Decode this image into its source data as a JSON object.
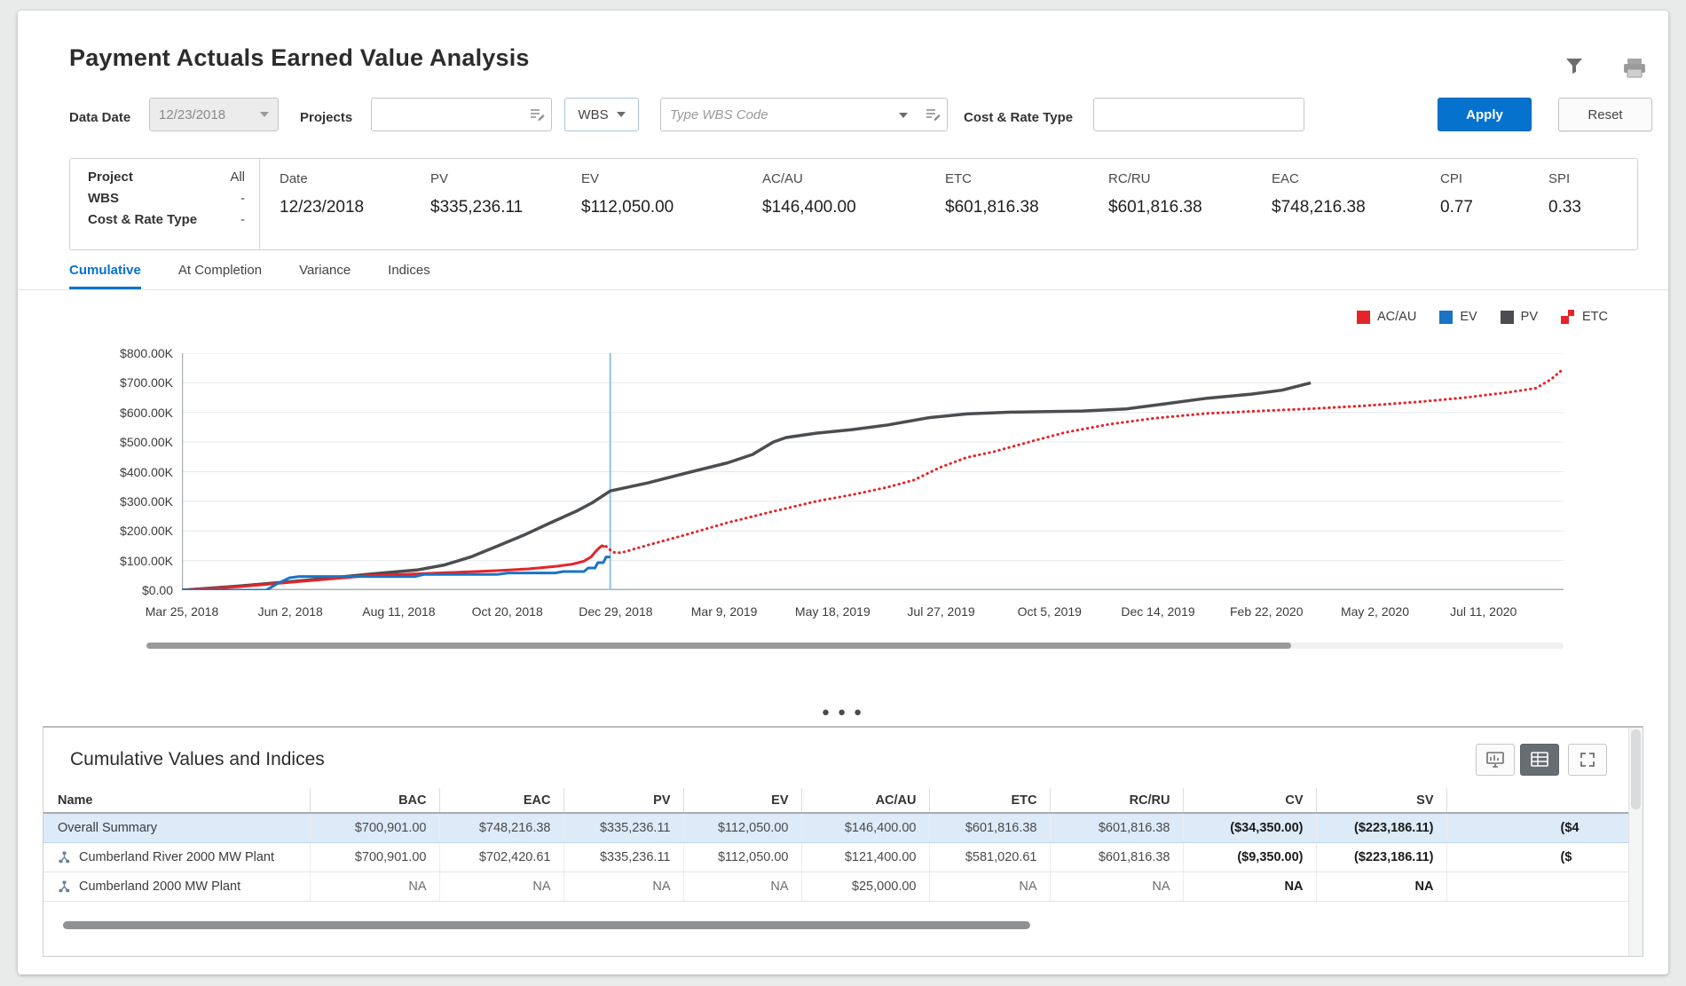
{
  "app": {
    "title": "Payment Actuals Earned Value Analysis"
  },
  "toolbar": {
    "apply_label": "Apply",
    "reset_label": "Reset"
  },
  "filters": {
    "data_date": {
      "label": "Data Date",
      "value": "12/23/2018"
    },
    "projects": {
      "label": "Projects",
      "value": ""
    },
    "wbs_selector": {
      "label": "WBS"
    },
    "wbs_code": {
      "placeholder": "Type WBS Code",
      "value": ""
    },
    "cost_rate_type": {
      "label": "Cost & Rate Type",
      "value": ""
    }
  },
  "summary": {
    "left": [
      {
        "label": "Project",
        "value": "All"
      },
      {
        "label": "WBS",
        "value": "-"
      },
      {
        "label": "Cost & Rate Type",
        "value": "-"
      }
    ],
    "metrics": [
      {
        "label": "Date",
        "value": "12/23/2018"
      },
      {
        "label": "PV",
        "value": "$335,236.11"
      },
      {
        "label": "EV",
        "value": "$112,050.00"
      },
      {
        "label": "AC/AU",
        "value": "$146,400.00"
      },
      {
        "label": "ETC",
        "value": "$601,816.38"
      },
      {
        "label": "RC/RU",
        "value": "$601,816.38"
      },
      {
        "label": "EAC",
        "value": "$748,216.38"
      },
      {
        "label": "CPI",
        "value": "0.77"
      },
      {
        "label": "SPI",
        "value": "0.33"
      }
    ]
  },
  "tabs": [
    {
      "label": "Cumulative",
      "active": true
    },
    {
      "label": "At Completion",
      "active": false
    },
    {
      "label": "Variance",
      "active": false
    },
    {
      "label": "Indices",
      "active": false
    }
  ],
  "chart_data": {
    "type": "line",
    "ylim": [
      0,
      800
    ],
    "grid": true,
    "legend_position": "top-right",
    "y_tick_labels": [
      "$800.00K",
      "$700.00K",
      "$600.00K",
      "$500.00K",
      "$400.00K",
      "$300.00K",
      "$200.00K",
      "$100.00K",
      "$0.00"
    ],
    "x_tick_labels": [
      "Mar 25, 2018",
      "Jun 2, 2018",
      "Aug 11, 2018",
      "Oct 20, 2018",
      "Dec 29, 2018",
      "Mar 9, 2019",
      "May 18, 2019",
      "Jul 27, 2019",
      "Oct 5, 2019",
      "Dec 14, 2019",
      "Feb 22, 2020",
      "May 2, 2020",
      "Jul 11, 2020"
    ],
    "data_date_x": 0.31,
    "value_unit": "K USD",
    "legend": [
      {
        "label": "AC/AU",
        "swatch": "square",
        "color": "#e42429"
      },
      {
        "label": "EV",
        "swatch": "square",
        "color": "#1a74c4"
      },
      {
        "label": "PV",
        "swatch": "square",
        "color": "#4b4d50"
      },
      {
        "label": "ETC",
        "swatch": "split",
        "color": "#e42429"
      }
    ],
    "series": [
      {
        "name": "PV",
        "color": "#4b4d50",
        "style": "solid",
        "width": 3.5,
        "points": [
          [
            0,
            0
          ],
          [
            0.042,
            14
          ],
          [
            0.087,
            32
          ],
          [
            0.138,
            55
          ],
          [
            0.17,
            68
          ],
          [
            0.19,
            85
          ],
          [
            0.209,
            112
          ],
          [
            0.229,
            150
          ],
          [
            0.247,
            185
          ],
          [
            0.267,
            228
          ],
          [
            0.286,
            268
          ],
          [
            0.297,
            295
          ],
          [
            0.31,
            335
          ],
          [
            0.337,
            362
          ],
          [
            0.369,
            400
          ],
          [
            0.395,
            430
          ],
          [
            0.413,
            458
          ],
          [
            0.428,
            500
          ],
          [
            0.437,
            515
          ],
          [
            0.459,
            530
          ],
          [
            0.485,
            542
          ],
          [
            0.511,
            558
          ],
          [
            0.54,
            582
          ],
          [
            0.568,
            595
          ],
          [
            0.6,
            601
          ],
          [
            0.652,
            605
          ],
          [
            0.684,
            612
          ],
          [
            0.71,
            628
          ],
          [
            0.742,
            648
          ],
          [
            0.774,
            662
          ],
          [
            0.796,
            675
          ],
          [
            0.817,
            700
          ]
        ]
      },
      {
        "name": "AC/AU",
        "color": "#e42429",
        "style": "solid",
        "width": 3,
        "points": [
          [
            0,
            0
          ],
          [
            0.042,
            12
          ],
          [
            0.087,
            30
          ],
          [
            0.138,
            50
          ],
          [
            0.161,
            53
          ],
          [
            0.17,
            55
          ],
          [
            0.228,
            66
          ],
          [
            0.251,
            72
          ],
          [
            0.27,
            80
          ],
          [
            0.283,
            88
          ],
          [
            0.291,
            98
          ],
          [
            0.296,
            112
          ],
          [
            0.299,
            128
          ],
          [
            0.302,
            143
          ],
          [
            0.304,
            150
          ],
          [
            0.306,
            146
          ]
        ]
      },
      {
        "name": "EV",
        "color": "#1a74c4",
        "style": "solid",
        "width": 3,
        "points": [
          [
            0,
            0
          ],
          [
            0.061,
            0
          ],
          [
            0.069,
            22
          ],
          [
            0.078,
            42
          ],
          [
            0.085,
            46
          ],
          [
            0.169,
            46
          ],
          [
            0.175,
            53
          ],
          [
            0.228,
            53
          ],
          [
            0.236,
            58
          ],
          [
            0.27,
            58
          ],
          [
            0.276,
            63
          ],
          [
            0.291,
            63
          ],
          [
            0.294,
            75
          ],
          [
            0.299,
            75
          ],
          [
            0.301,
            93
          ],
          [
            0.305,
            93
          ],
          [
            0.307,
            112
          ],
          [
            0.31,
            112
          ]
        ]
      },
      {
        "name": "ETC",
        "color": "#e42429",
        "style": "dotted",
        "width": 3,
        "points": [
          [
            0.307,
            148
          ],
          [
            0.312,
            128
          ],
          [
            0.318,
            126
          ],
          [
            0.337,
            152
          ],
          [
            0.363,
            185
          ],
          [
            0.395,
            228
          ],
          [
            0.427,
            265
          ],
          [
            0.459,
            300
          ],
          [
            0.485,
            322
          ],
          [
            0.511,
            348
          ],
          [
            0.53,
            372
          ],
          [
            0.549,
            415
          ],
          [
            0.568,
            448
          ],
          [
            0.588,
            468
          ],
          [
            0.613,
            500
          ],
          [
            0.639,
            532
          ],
          [
            0.671,
            560
          ],
          [
            0.703,
            580
          ],
          [
            0.742,
            597
          ],
          [
            0.78,
            605
          ],
          [
            0.819,
            613
          ],
          [
            0.857,
            623
          ],
          [
            0.896,
            636
          ],
          [
            0.928,
            650
          ],
          [
            0.96,
            668
          ],
          [
            0.98,
            682
          ],
          [
            0.991,
            712
          ],
          [
            1.0,
            748
          ]
        ]
      }
    ]
  },
  "panel": {
    "title": "Cumulative Values and Indices",
    "columns": [
      "Name",
      "BAC",
      "EAC",
      "PV",
      "EV",
      "AC/AU",
      "ETC",
      "RC/RU",
      "CV",
      "SV",
      ""
    ],
    "rows": [
      {
        "name": "Overall Summary",
        "icon": false,
        "selected": true,
        "values": [
          "$700,901.00",
          "$748,216.38",
          "$335,236.11",
          "$112,050.00",
          "$146,400.00",
          "$601,816.38",
          "$601,816.38",
          "($34,350.00)",
          "($223,186.11)",
          "($4"
        ]
      },
      {
        "name": "Cumberland River 2000 MW Plant",
        "icon": true,
        "selected": false,
        "values": [
          "$700,901.00",
          "$702,420.61",
          "$335,236.11",
          "$112,050.00",
          "$121,400.00",
          "$581,020.61",
          "$601,816.38",
          "($9,350.00)",
          "($223,186.11)",
          "($"
        ]
      },
      {
        "name": "Cumberland 2000 MW Plant",
        "icon": true,
        "selected": false,
        "values": [
          "NA",
          "NA",
          "NA",
          "NA",
          "$25,000.00",
          "NA",
          "NA",
          "NA",
          "NA",
          ""
        ]
      }
    ]
  },
  "colors": {
    "accent": "#0572ce",
    "red": "#e42429",
    "blue": "#1a74c4",
    "gray_line": "#4b4d50",
    "selected_row": "#ddeaf8"
  }
}
